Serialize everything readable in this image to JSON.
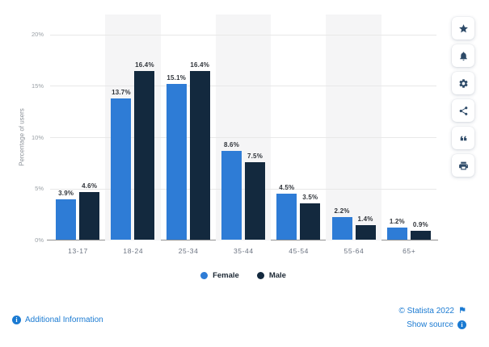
{
  "chart_data": {
    "type": "bar",
    "title": "",
    "categories": [
      "13-17",
      "18-24",
      "25-34",
      "35-44",
      "45-54",
      "55-64",
      "65+"
    ],
    "series": [
      {
        "name": "Female",
        "color": "#2e7cd6",
        "values": [
          3.9,
          13.7,
          15.1,
          8.6,
          4.5,
          2.2,
          1.2
        ]
      },
      {
        "name": "Male",
        "color": "#13293e",
        "values": [
          4.6,
          16.4,
          16.4,
          7.5,
          3.5,
          1.4,
          0.9
        ]
      }
    ],
    "xlabel": "",
    "ylabel": "Percentage of users",
    "ylim": [
      0,
      20
    ],
    "yticks": [
      0,
      5,
      10,
      15,
      20
    ],
    "ytick_suffix": "%",
    "value_label_suffix": "%",
    "grid": true,
    "legend_position": "bottom-center",
    "band_color": "#f5f5f6",
    "band_columns": [
      1,
      3,
      5
    ]
  },
  "sidebar": {
    "icons": [
      "star-icon",
      "bell-icon",
      "gear-icon",
      "share-icon",
      "quote-icon",
      "printer-icon"
    ]
  },
  "footer": {
    "additional_info": "Additional Information",
    "copyright": "© Statista 2022",
    "show_source": "Show source"
  },
  "colors": {
    "female": "#2e7cd6",
    "male": "#13293e",
    "link_blue": "#1a7ad2",
    "gridline": "#e8e8e8",
    "plot_band": "#f5f5f6"
  }
}
